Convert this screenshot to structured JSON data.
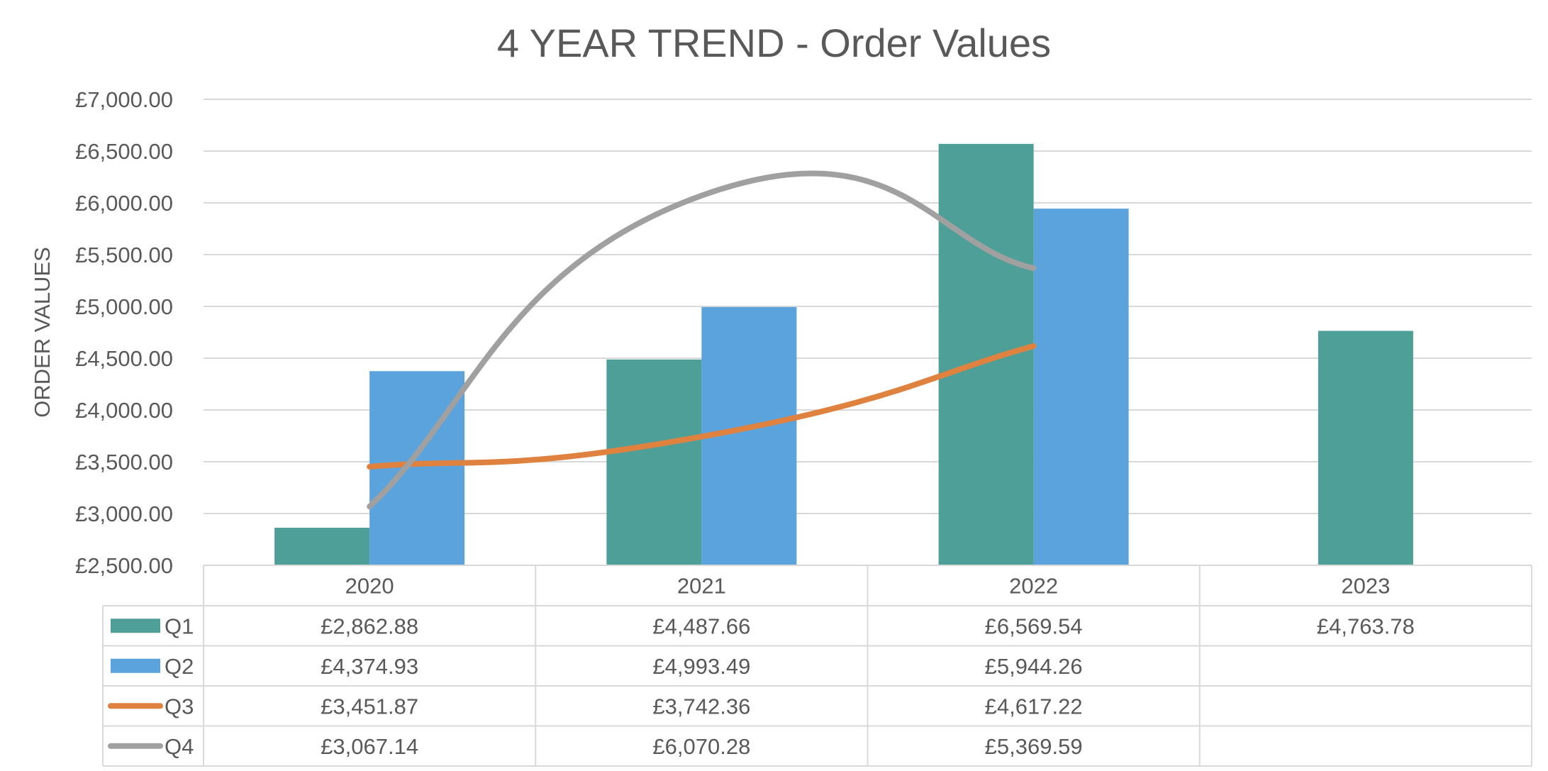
{
  "chart_data": {
    "type": "bar",
    "title": "4 YEAR TREND - Order Values",
    "xlabel": "",
    "ylabel": "ORDER VALUES",
    "ylim": [
      2500,
      7000
    ],
    "ytick_step": 500,
    "ytick_labels": [
      "£2,500.00",
      "£3,000.00",
      "£3,500.00",
      "£4,000.00",
      "£4,500.00",
      "£5,000.00",
      "£5,500.00",
      "£6,000.00",
      "£6,500.00",
      "£7,000.00"
    ],
    "categories": [
      "2020",
      "2021",
      "2022",
      "2023"
    ],
    "grid": true,
    "legend": "data-table",
    "series": [
      {
        "name": "Q1",
        "kind": "bar",
        "color": "#4E9F98",
        "values": [
          2862.88,
          4487.66,
          6569.54,
          4763.78
        ],
        "labels": [
          "£2,862.88",
          "£4,487.66",
          "£6,569.54",
          "£4,763.78"
        ]
      },
      {
        "name": "Q2",
        "kind": "bar",
        "color": "#5BA3DC",
        "values": [
          4374.93,
          4993.49,
          5944.26,
          null
        ],
        "labels": [
          "£4,374.93",
          "£4,993.49",
          "£5,944.26",
          ""
        ]
      },
      {
        "name": "Q3",
        "kind": "line",
        "smooth": true,
        "color": "#E0823F",
        "values": [
          3451.87,
          3742.36,
          4617.22,
          null
        ],
        "labels": [
          "£3,451.87",
          "£3,742.36",
          "£4,617.22",
          ""
        ]
      },
      {
        "name": "Q4",
        "kind": "line",
        "smooth": true,
        "color": "#A0A0A0",
        "values": [
          3067.14,
          6070.28,
          5369.59,
          null
        ],
        "labels": [
          "£3,067.14",
          "£6,070.28",
          "£5,369.59",
          ""
        ]
      }
    ]
  }
}
